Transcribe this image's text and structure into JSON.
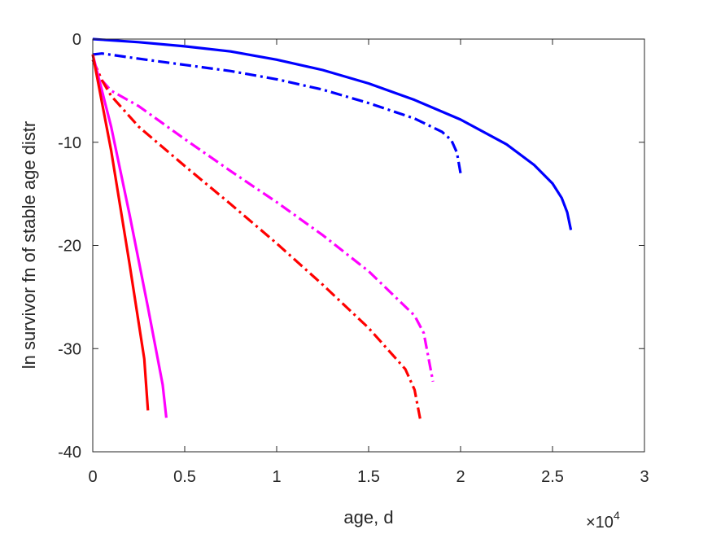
{
  "chart_data": {
    "type": "line",
    "title": "",
    "xlabel": "age, d",
    "ylabel": "ln survivor fn of stable age distr",
    "x_exponent_label": {
      "base": "×10",
      "exponent": "4"
    },
    "xlim": [
      0,
      3
    ],
    "ylim": [
      -40,
      0
    ],
    "x_unit_multiplier": 10000,
    "x_ticks": [
      0,
      0.5,
      1,
      1.5,
      2,
      2.5,
      3
    ],
    "x_tick_labels": [
      "0",
      "0.5",
      "1",
      "1.5",
      "2",
      "2.5",
      "3"
    ],
    "y_ticks": [
      0,
      -10,
      -20,
      -30,
      -40
    ],
    "y_tick_labels": [
      "0",
      "-10",
      "-20",
      "-30",
      "-40"
    ],
    "grid": false,
    "box": true,
    "series": [
      {
        "color": "#0000ff",
        "style": "solid",
        "x": [
          0,
          0.25,
          0.5,
          0.75,
          1.0,
          1.25,
          1.5,
          1.75,
          2.0,
          2.25,
          2.4,
          2.5,
          2.55,
          2.58,
          2.6
        ],
        "y": [
          0,
          -0.3,
          -0.7,
          -1.2,
          -2.0,
          -3.0,
          -4.3,
          -5.9,
          -7.8,
          -10.2,
          -12.2,
          -14.0,
          -15.4,
          -16.8,
          -18.5
        ]
      },
      {
        "color": "#0000ff",
        "style": "dashdot",
        "x": [
          0,
          0.05,
          0.25,
          0.5,
          0.75,
          1.0,
          1.25,
          1.5,
          1.75,
          1.9,
          1.95,
          1.98,
          2.0
        ],
        "y": [
          -1.5,
          -1.4,
          -1.9,
          -2.5,
          -3.1,
          -3.9,
          -4.9,
          -6.2,
          -7.7,
          -9.0,
          -9.8,
          -11.0,
          -13.0
        ]
      },
      {
        "color": "#ff00ff",
        "style": "dashdot",
        "x": [
          0,
          0.05,
          0.1,
          0.25,
          0.5,
          0.75,
          1.0,
          1.25,
          1.5,
          1.75,
          1.8,
          1.85
        ],
        "y": [
          -2.0,
          -4.0,
          -5.0,
          -6.5,
          -9.7,
          -12.8,
          -15.8,
          -19.0,
          -22.5,
          -26.8,
          -28.5,
          -33.2
        ]
      },
      {
        "color": "#ff0000",
        "style": "dashdot",
        "x": [
          0,
          0.05,
          0.1,
          0.25,
          0.5,
          0.75,
          1.0,
          1.25,
          1.5,
          1.7,
          1.75,
          1.78
        ],
        "y": [
          -2.0,
          -4.0,
          -5.5,
          -8.5,
          -12.3,
          -16.0,
          -19.8,
          -23.8,
          -28.0,
          -32.0,
          -34.0,
          -36.8
        ]
      },
      {
        "color": "#ff00ff",
        "style": "solid",
        "x": [
          0,
          0.1,
          0.2,
          0.3,
          0.38,
          0.4
        ],
        "y": [
          -1.5,
          -8.5,
          -17.0,
          -26.0,
          -33.5,
          -36.7
        ]
      },
      {
        "color": "#ff0000",
        "style": "solid",
        "x": [
          0,
          0.1,
          0.2,
          0.28,
          0.3
        ],
        "y": [
          -1.5,
          -10.8,
          -21.8,
          -31.0,
          -36.0
        ]
      }
    ]
  }
}
